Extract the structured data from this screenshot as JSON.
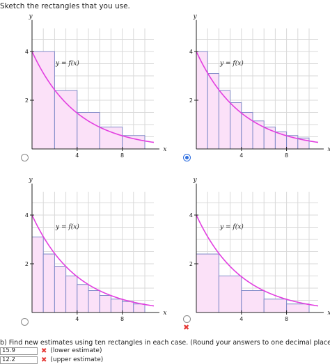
{
  "instruction": "Sketch the rectangles that you use.",
  "graphs": [
    {
      "id": "a",
      "y_label": "y",
      "x_label": "x",
      "curve_label": "y = f(x)",
      "y_ticks": [
        "2",
        "4"
      ],
      "x_ticks": [
        "4",
        "8"
      ],
      "selected": false,
      "marked_wrong": false,
      "rectangles": [
        {
          "x0": 0,
          "x1": 2,
          "h": 4.0
        },
        {
          "x0": 2,
          "x1": 4,
          "h": 2.4
        },
        {
          "x0": 4,
          "x1": 6,
          "h": 1.5
        },
        {
          "x0": 6,
          "x1": 8,
          "h": 0.9
        },
        {
          "x0": 8,
          "x1": 10,
          "h": 0.55
        }
      ]
    },
    {
      "id": "b",
      "y_label": "y",
      "x_label": "x",
      "curve_label": "y = f(x)",
      "y_ticks": [
        "2",
        "4"
      ],
      "x_ticks": [
        "4",
        "8"
      ],
      "selected": true,
      "marked_wrong": false,
      "rectangles": [
        {
          "x0": 0,
          "x1": 1,
          "h": 4.0
        },
        {
          "x0": 1,
          "x1": 2,
          "h": 3.1
        },
        {
          "x0": 2,
          "x1": 3,
          "h": 2.4
        },
        {
          "x0": 3,
          "x1": 4,
          "h": 1.9
        },
        {
          "x0": 4,
          "x1": 5,
          "h": 1.5
        },
        {
          "x0": 5,
          "x1": 6,
          "h": 1.15
        },
        {
          "x0": 6,
          "x1": 7,
          "h": 0.9
        },
        {
          "x0": 7,
          "x1": 8,
          "h": 0.7
        },
        {
          "x0": 8,
          "x1": 9,
          "h": 0.55
        },
        {
          "x0": 9,
          "x1": 10,
          "h": 0.45
        }
      ]
    },
    {
      "id": "c",
      "y_label": "y",
      "x_label": "x",
      "curve_label": "y = f(x)",
      "y_ticks": [
        "2",
        "4"
      ],
      "x_ticks": [
        "4",
        "8"
      ],
      "selected": false,
      "marked_wrong": false,
      "rectangles": [
        {
          "x0": 0,
          "x1": 1,
          "h": 3.1
        },
        {
          "x0": 1,
          "x1": 2,
          "h": 2.4
        },
        {
          "x0": 2,
          "x1": 3,
          "h": 1.9
        },
        {
          "x0": 3,
          "x1": 4,
          "h": 1.5
        },
        {
          "x0": 4,
          "x1": 5,
          "h": 1.15
        },
        {
          "x0": 5,
          "x1": 6,
          "h": 0.9
        },
        {
          "x0": 6,
          "x1": 7,
          "h": 0.7
        },
        {
          "x0": 7,
          "x1": 8,
          "h": 0.55
        },
        {
          "x0": 8,
          "x1": 9,
          "h": 0.45
        },
        {
          "x0": 9,
          "x1": 10,
          "h": 0.35
        }
      ]
    },
    {
      "id": "d",
      "y_label": "y",
      "x_label": "x",
      "curve_label": "y = f(x)",
      "y_ticks": [
        "2",
        "4"
      ],
      "x_ticks": [
        "4",
        "8"
      ],
      "selected": false,
      "marked_wrong": true,
      "rectangles": [
        {
          "x0": 0,
          "x1": 2,
          "h": 2.4
        },
        {
          "x0": 2,
          "x1": 4,
          "h": 1.5
        },
        {
          "x0": 4,
          "x1": 6,
          "h": 0.9
        },
        {
          "x0": 6,
          "x1": 8,
          "h": 0.55
        },
        {
          "x0": 8,
          "x1": 10,
          "h": 0.35
        }
      ]
    }
  ],
  "colors": {
    "curve": "#e23ee0",
    "rect_fill": "#fbe1f8",
    "rect_stroke": "#7f89c7",
    "grid": "#d9d9d9",
    "axis": "#222222",
    "wrong": "#e53935",
    "radio_selected": "#2f6fe0"
  },
  "part_b": {
    "prompt": "b) Find new estimates using ten rectangles in each case. (Round your answers to one decimal place.)",
    "answers": [
      {
        "value": "15.9",
        "label": "(lower estimate)",
        "correct": false
      },
      {
        "value": "12.2",
        "label": "(upper estimate)",
        "correct": false
      }
    ]
  }
}
